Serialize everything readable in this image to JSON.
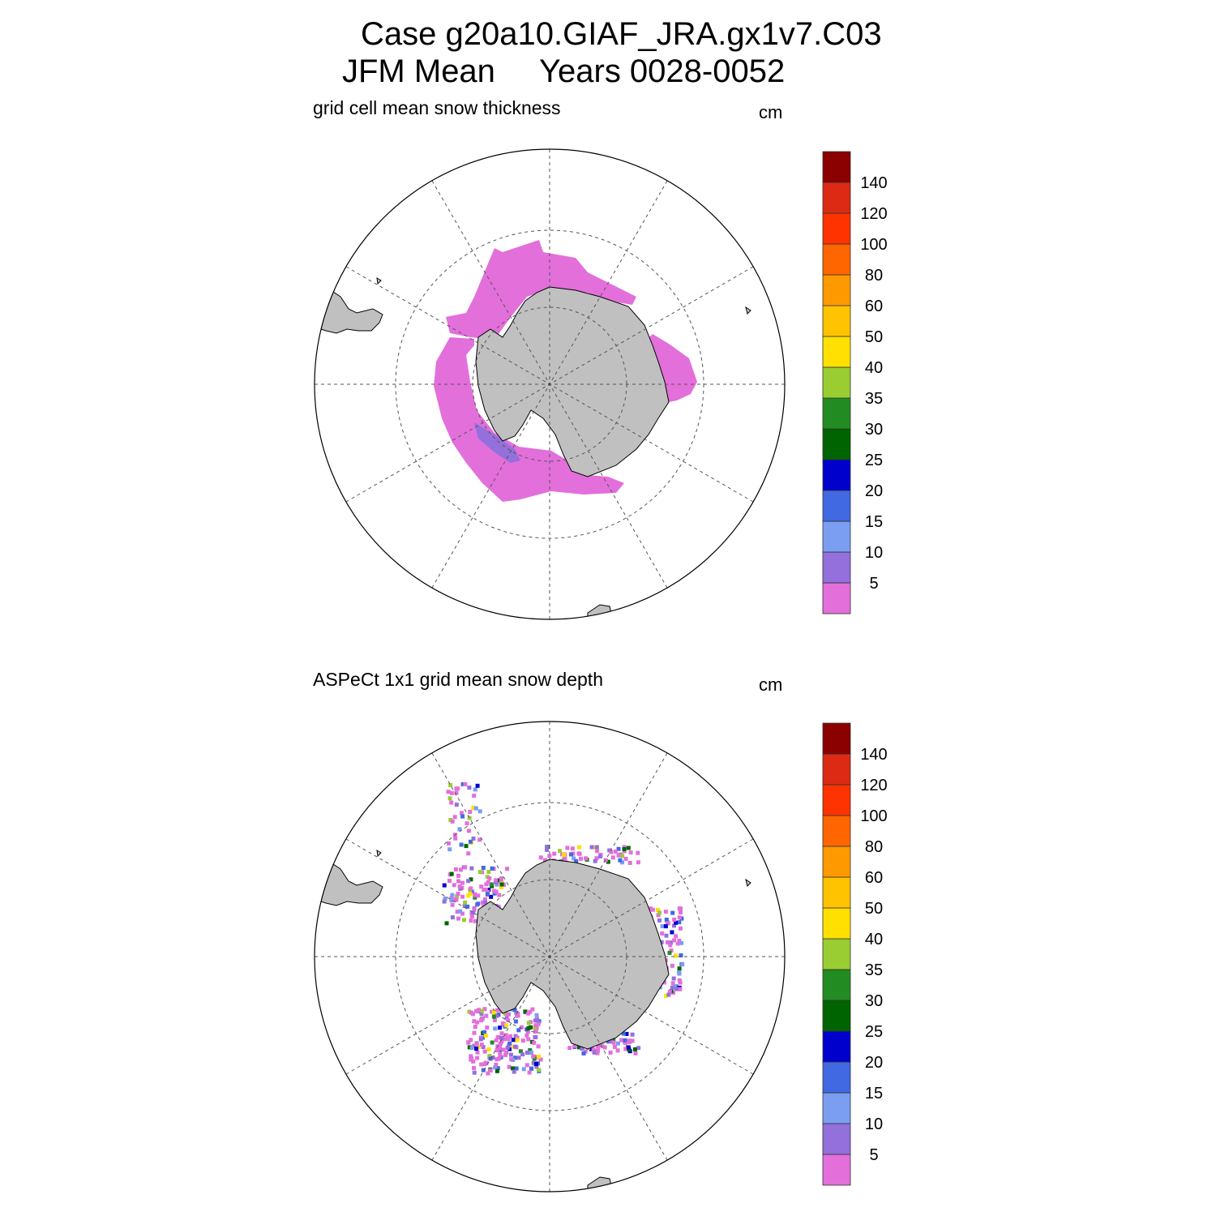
{
  "figure": {
    "title_line1": "Case g20a10.GIAF_JRA.gx1v7.C03",
    "title_line2_left": "JFM Mean",
    "title_line2_right": "Years 0028-0052"
  },
  "panels": [
    {
      "title": "grid cell mean snow thickness",
      "units": "cm"
    },
    {
      "title": "ASPeCt 1x1 grid mean snow depth",
      "units": "cm"
    }
  ],
  "colorbar": {
    "labels": [
      "5",
      "10",
      "15",
      "20",
      "25",
      "30",
      "35",
      "40",
      "50",
      "60",
      "80",
      "100",
      "120",
      "140"
    ],
    "colors": [
      "#e36fdb",
      "#9370db",
      "#7b9ef2",
      "#4169e1",
      "#0000cd",
      "#006400",
      "#228b22",
      "#9acd32",
      "#ffe000",
      "#ffc300",
      "#ff9900",
      "#ff6600",
      "#ff3300",
      "#dc2a14",
      "#8b0000"
    ]
  },
  "colors": {
    "land": "#c0c0c0",
    "primary_fill": "#e36fdb"
  }
}
